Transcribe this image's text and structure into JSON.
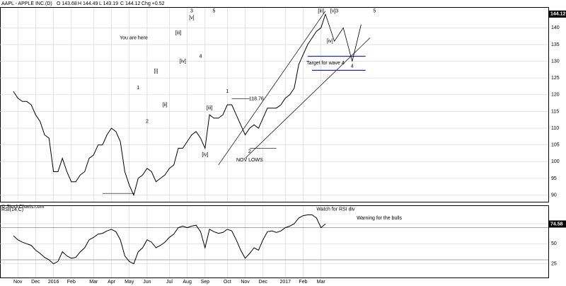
{
  "chart_data": {
    "type": "line",
    "title": "AAPL - APPLE INC.(D)",
    "quote": [
      "O 143.68",
      "H 144.49",
      "L 143.19",
      "C 144.12",
      "Chg +0.52"
    ],
    "source": "© StockCharts.com",
    "x": [
      0,
      1,
      2,
      3,
      4,
      5,
      6,
      7,
      8,
      9,
      10,
      11,
      12,
      13,
      14,
      15,
      16,
      17,
      18,
      19,
      20,
      21,
      22,
      23,
      24,
      25,
      26,
      27,
      28,
      29,
      30,
      31,
      32,
      33,
      34,
      35,
      36,
      37,
      38,
      39,
      40,
      41,
      42,
      43,
      44,
      45,
      46,
      47,
      48,
      49,
      50,
      51,
      52,
      53,
      54,
      55,
      56,
      57,
      58,
      59,
      60,
      61,
      62,
      63,
      64,
      65,
      66,
      67,
      68,
      69,
      70
    ],
    "xlim": [
      -3,
      120
    ],
    "xticks": [
      {
        "value": 1,
        "label": "Nov"
      },
      {
        "value": 5,
        "label": "Dec"
      },
      {
        "value": 9,
        "label": "2016"
      },
      {
        "value": 13,
        "label": "Feb"
      },
      {
        "value": 18,
        "label": "Mar"
      },
      {
        "value": 22,
        "label": "Apr"
      },
      {
        "value": 26,
        "label": "May"
      },
      {
        "value": 30,
        "label": "Jun"
      },
      {
        "value": 35,
        "label": "Jul"
      },
      {
        "value": 39,
        "label": "Aug"
      },
      {
        "value": 43,
        "label": "Sep"
      },
      {
        "value": 48,
        "label": "Oct"
      },
      {
        "value": 52,
        "label": "Nov"
      },
      {
        "value": 56,
        "label": "Dec"
      },
      {
        "value": 61,
        "label": "2017"
      },
      {
        "value": 65,
        "label": "Feb"
      },
      {
        "value": 69,
        "label": "Mar"
      }
    ],
    "series": [
      {
        "name": "AAPL",
        "color": "#000000",
        "values": [
          121,
          119,
          118,
          118,
          117,
          114,
          112,
          108,
          107,
          97,
          97,
          101,
          97,
          94,
          94,
          96,
          97,
          101,
          102,
          105,
          105,
          108,
          110,
          109,
          106,
          97,
          93,
          90,
          95,
          96,
          98,
          97,
          94,
          95,
          96,
          98,
          99,
          104,
          104,
          106,
          108,
          109,
          107,
          104,
          114,
          113,
          113,
          114,
          117,
          117,
          114,
          111,
          108,
          110,
          111,
          110,
          113,
          116,
          116,
          116,
          117,
          119,
          120,
          122,
          129,
          132,
          135,
          137,
          139,
          140,
          144.12
        ]
      }
    ],
    "ylim": [
      88,
      146
    ],
    "yticks": [
      90,
      95,
      100,
      105,
      110,
      115,
      120,
      125,
      130,
      135,
      140
    ],
    "last_price": 144.12,
    "grid": true,
    "projection": {
      "x": [
        70,
        72,
        74,
        76,
        78
      ],
      "values": [
        144.12,
        136,
        140,
        130,
        141
      ]
    },
    "lines": [
      {
        "x1": 46,
        "y1": 99,
        "x2": 70,
        "y2": 145
      },
      {
        "x1": 52,
        "y1": 101,
        "x2": 80,
        "y2": 137
      },
      {
        "x1": 66,
        "y1": 131.5,
        "x2": 79,
        "y2": 131.5,
        "color": "#1a2fa8"
      },
      {
        "x1": 67,
        "y1": 127.3,
        "x2": 79,
        "y2": 127.3,
        "color": "#1a2fa8"
      },
      {
        "x1": 20,
        "y1": 90.5,
        "x2": 27,
        "y2": 90.5
      },
      {
        "x1": 49,
        "y1": 118.76,
        "x2": 53,
        "y2": 118.76
      },
      {
        "x1": 53,
        "y1": 104,
        "x2": 59,
        "y2": 104
      }
    ],
    "annotations": [
      {
        "text": "You are here",
        "x": 27,
        "y": 137
      },
      {
        "text": "Target for wave 4",
        "x": 70,
        "y": 129.5
      },
      {
        "text": "NOV LOWS",
        "x": 53,
        "y": 100.5
      },
      {
        "text": "118.76",
        "x": 54.5,
        "y": 118.76
      },
      {
        "text": "3",
        "x": 40,
        "y": 145
      },
      {
        "text": "5",
        "x": 45,
        "y": 145
      },
      {
        "text": "[v]",
        "x": 40,
        "y": 143
      },
      {
        "text": "[iii]",
        "x": 37,
        "y": 138.5
      },
      {
        "text": "[iv]",
        "x": 38,
        "y": 130
      },
      {
        "text": "4",
        "x": 42,
        "y": 131.5
      },
      {
        "text": "1",
        "x": 28,
        "y": 122
      },
      {
        "text": "2",
        "x": 30,
        "y": 112
      },
      {
        "text": "[i]",
        "x": 32,
        "y": 127
      },
      {
        "text": "[ii]",
        "x": 34,
        "y": 117
      },
      {
        "text": "1",
        "x": 48,
        "y": 121
      },
      {
        "text": "2",
        "x": 53,
        "y": 103
      },
      {
        "text": "[iii]",
        "x": 44,
        "y": 116
      },
      {
        "text": "[iv]",
        "x": 43,
        "y": 102
      },
      {
        "text": "[v]3",
        "x": 72,
        "y": 145
      },
      {
        "text": "5",
        "x": 81,
        "y": 145
      },
      {
        "text": "[iii]",
        "x": 69,
        "y": 145
      },
      {
        "text": "[iv]",
        "x": 71,
        "y": 136
      },
      {
        "text": "4",
        "x": 76,
        "y": 128.5
      }
    ],
    "rsi": {
      "title": "RSI(14,C)",
      "values": [
        60,
        55,
        52,
        50,
        48,
        42,
        38,
        33,
        30,
        25,
        28,
        40,
        35,
        32,
        33,
        40,
        45,
        55,
        58,
        62,
        63,
        66,
        68,
        65,
        55,
        35,
        28,
        25,
        40,
        45,
        55,
        52,
        45,
        48,
        52,
        58,
        62,
        70,
        72,
        70,
        72,
        73,
        65,
        45,
        68,
        65,
        63,
        64,
        68,
        66,
        55,
        42,
        32,
        38,
        45,
        42,
        55,
        65,
        66,
        64,
        66,
        70,
        72,
        75,
        82,
        85,
        86,
        86,
        82,
        70,
        74.58
      ],
      "ylim": [
        8,
        97
      ],
      "yticks": [
        25,
        50,
        75
      ],
      "levels": [
        30,
        70
      ],
      "last": 74.58,
      "annotations": [
        {
          "text": "Watch for RSI div",
          "x": 68,
          "y": 93
        },
        {
          "text": "Warning for the bulls",
          "x": 77,
          "y": 82
        }
      ]
    }
  }
}
